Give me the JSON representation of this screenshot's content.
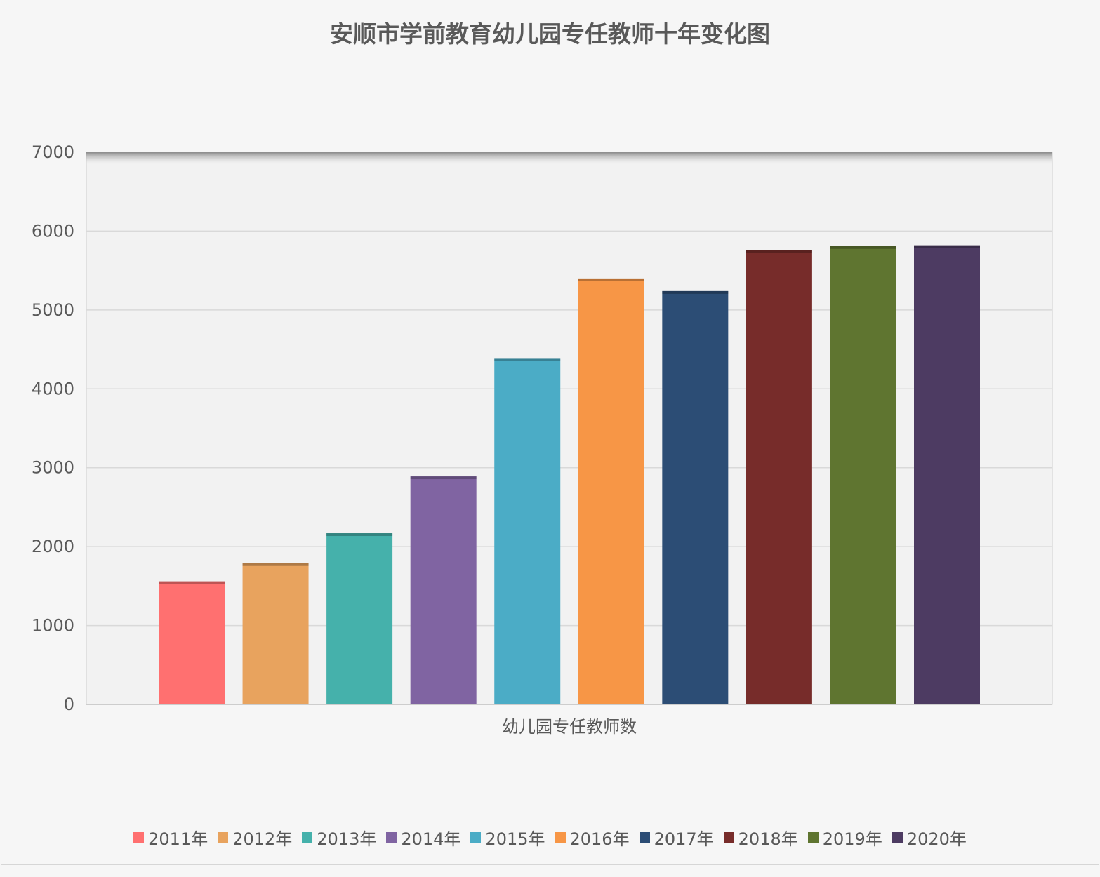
{
  "chart_data": {
    "type": "bar",
    "title": "安顺市学前教育幼儿园专任教师十年变化图",
    "categories": [
      "幼儿园专任教师数"
    ],
    "series": [
      {
        "name": "2011年",
        "values": [
          1560
        ],
        "color": "#ff7070"
      },
      {
        "name": "2012年",
        "values": [
          1790
        ],
        "color": "#e8a35e"
      },
      {
        "name": "2013年",
        "values": [
          2170
        ],
        "color": "#45b1ab"
      },
      {
        "name": "2014年",
        "values": [
          2890
        ],
        "color": "#8064a2"
      },
      {
        "name": "2015年",
        "values": [
          4390
        ],
        "color": "#4bacc6"
      },
      {
        "name": "2016年",
        "values": [
          5400
        ],
        "color": "#f79646"
      },
      {
        "name": "2017年",
        "values": [
          5240
        ],
        "color": "#2c4d75"
      },
      {
        "name": "2018年",
        "values": [
          5760
        ],
        "color": "#772c2a"
      },
      {
        "name": "2019年",
        "values": [
          5810
        ],
        "color": "#5f7530"
      },
      {
        "name": "2020年",
        "values": [
          5820
        ],
        "color": "#4d3b62"
      }
    ],
    "yticks": [
      "0",
      "1000",
      "2000",
      "3000",
      "4000",
      "5000",
      "6000",
      "7000"
    ],
    "ylim": [
      0,
      7000
    ],
    "grid": true,
    "legend_position": "bottom"
  }
}
